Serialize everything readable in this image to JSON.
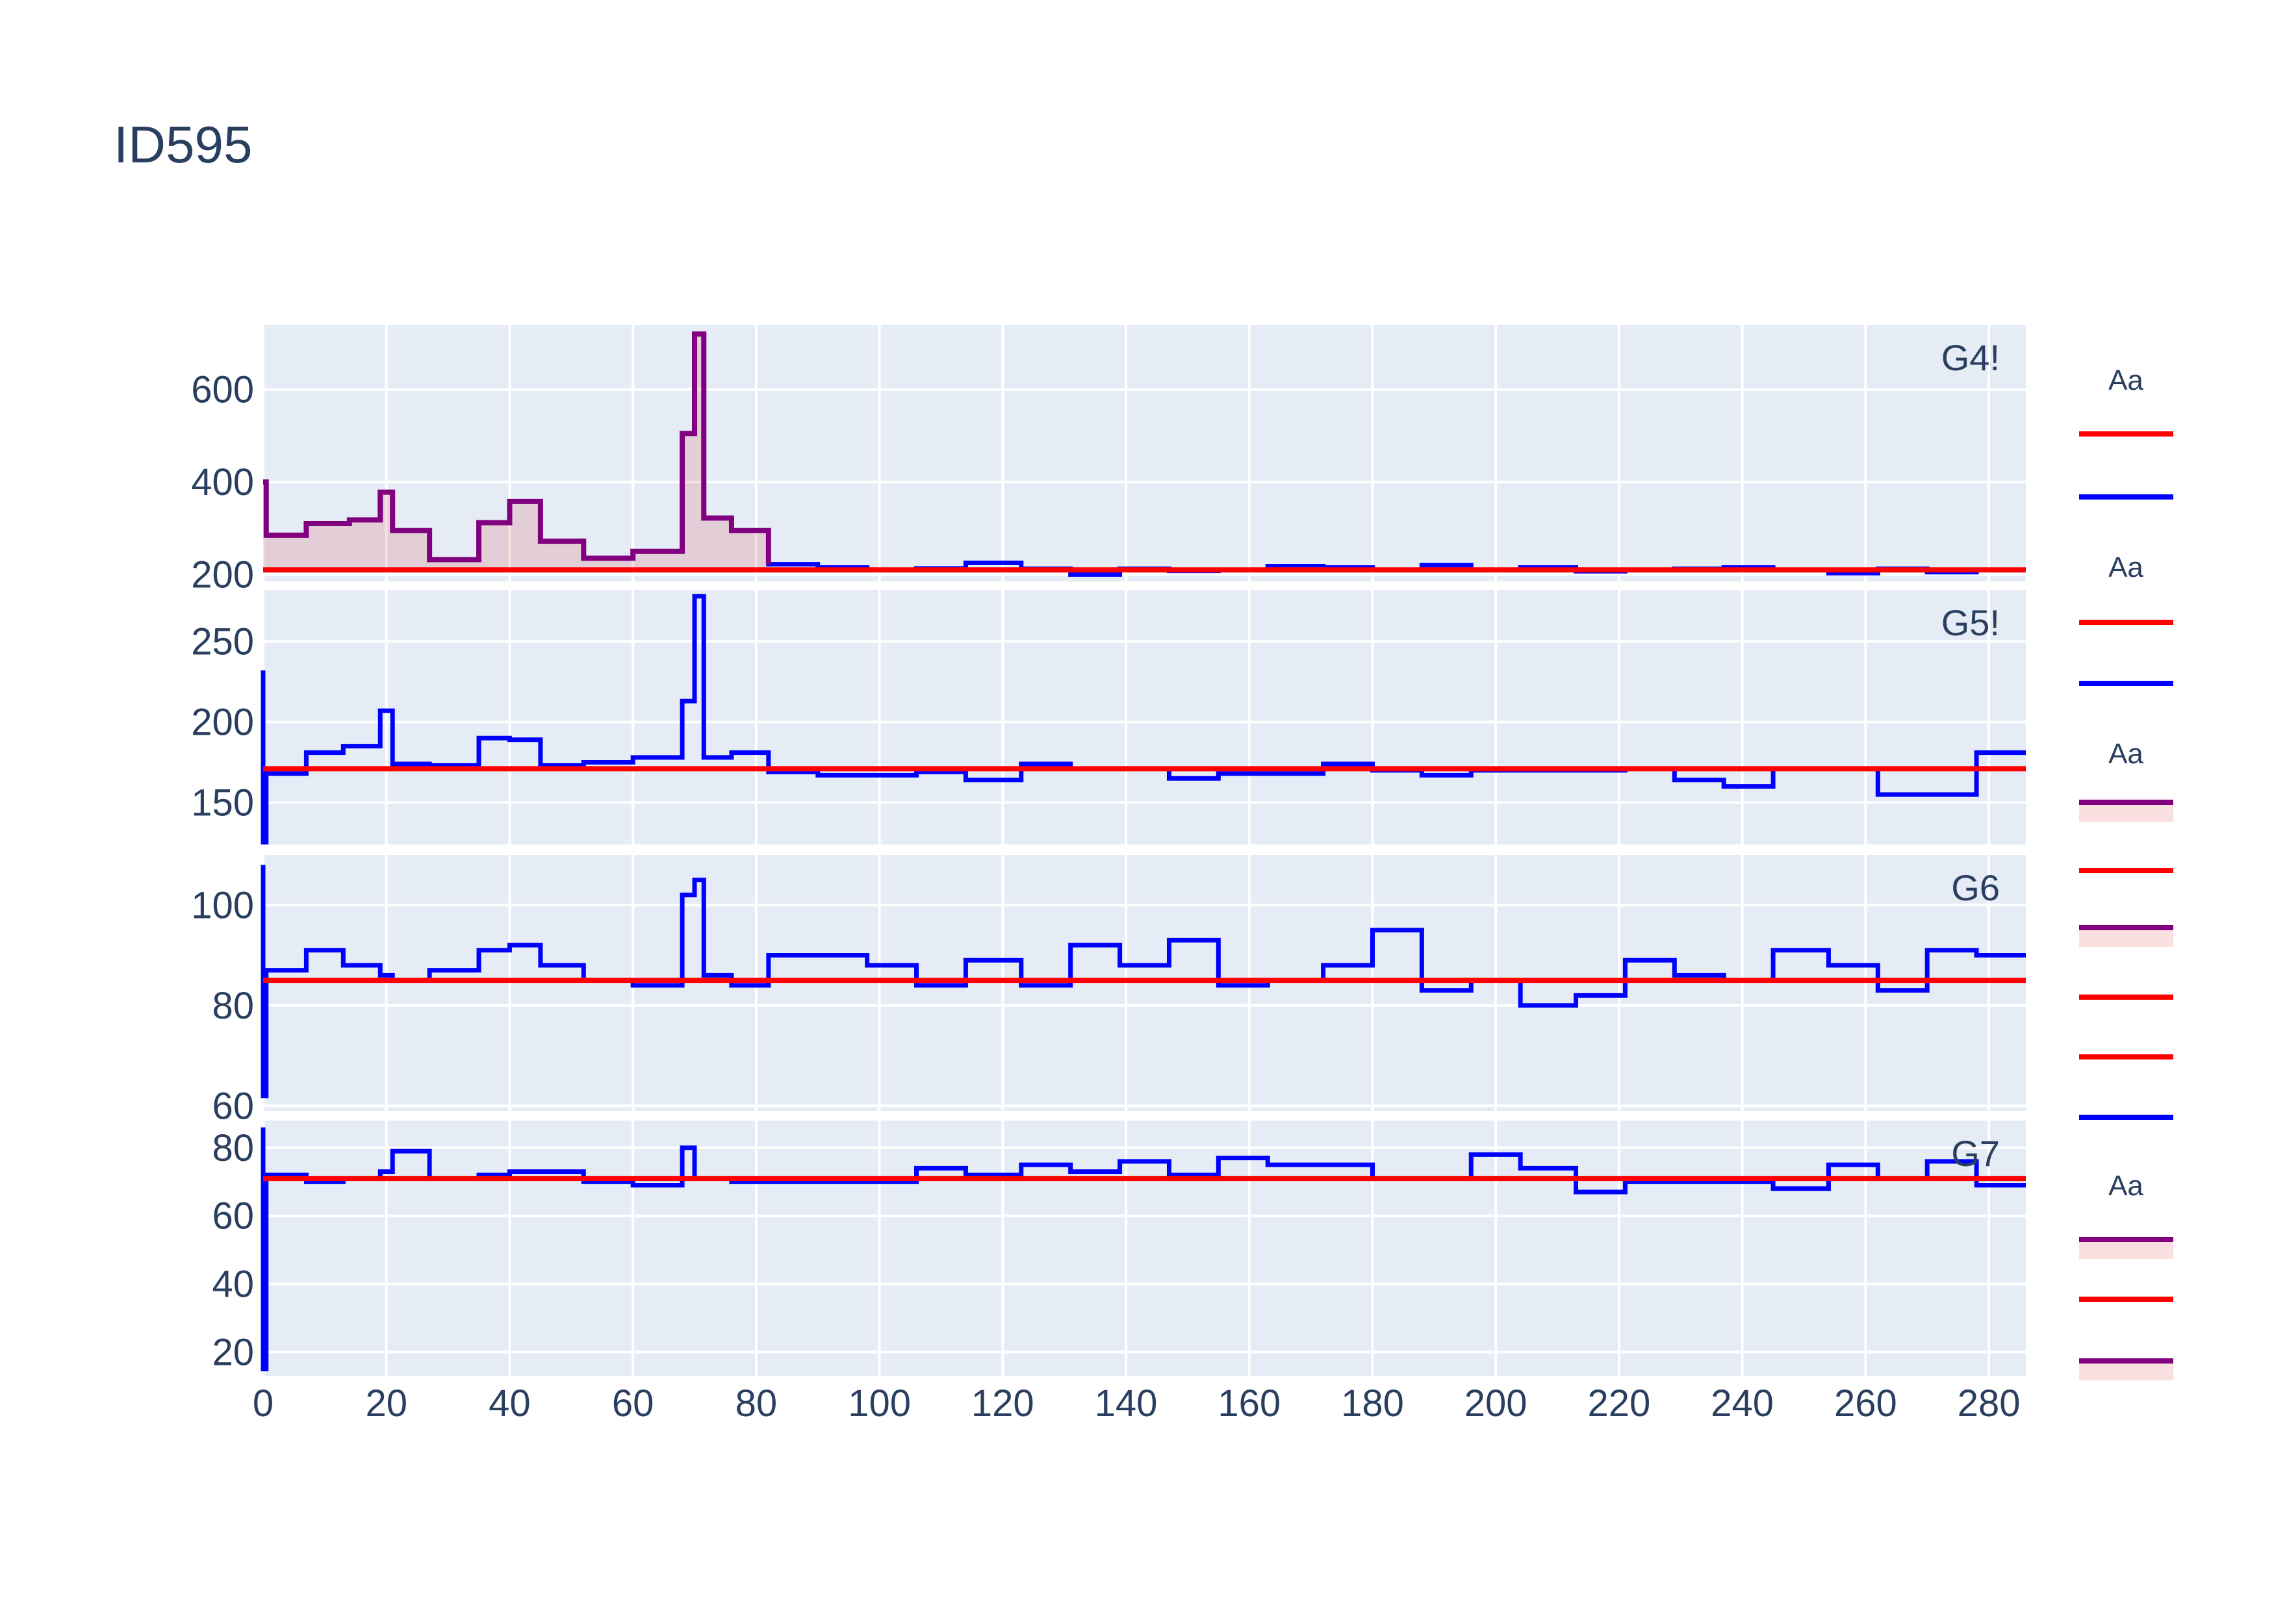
{
  "chart_data": {
    "type": "line",
    "title": "ID595",
    "x_axis": {
      "range": [
        0,
        286
      ],
      "ticks": [
        0,
        20,
        40,
        60,
        80,
        100,
        120,
        140,
        160,
        180,
        200,
        220,
        240,
        260,
        280
      ]
    },
    "grid": true,
    "legend_placement": "right",
    "colors": {
      "series": "#0000ff",
      "threshold": "#ff0000",
      "anomaly": "#800080",
      "fill": "rgba(214,39,40,0.15)",
      "plot_bg": "#e5ecf6",
      "text": "#2a3f5f"
    },
    "panels": [
      {
        "label": "G4!",
        "yrange": [
          185,
          740
        ],
        "yticks": [
          200,
          400,
          600
        ],
        "threshold": 210,
        "series": [
          {
            "x": 0,
            "y": 400
          },
          {
            "x": 0.5,
            "y": 285
          },
          {
            "x": 7,
            "y": 310
          },
          {
            "x": 14,
            "y": 318
          },
          {
            "x": 19,
            "y": 378
          },
          {
            "x": 21,
            "y": 295
          },
          {
            "x": 27,
            "y": 232
          },
          {
            "x": 35,
            "y": 312
          },
          {
            "x": 40,
            "y": 358
          },
          {
            "x": 45,
            "y": 272
          },
          {
            "x": 52,
            "y": 235
          },
          {
            "x": 60,
            "y": 250
          },
          {
            "x": 68,
            "y": 505
          },
          {
            "x": 70,
            "y": 720
          },
          {
            "x": 71.5,
            "y": 322
          },
          {
            "x": 76,
            "y": 295
          },
          {
            "x": 82,
            "y": 222
          },
          {
            "x": 90,
            "y": 215
          },
          {
            "x": 98,
            "y": 210
          },
          {
            "x": 106,
            "y": 213
          },
          {
            "x": 114,
            "y": 225
          },
          {
            "x": 123,
            "y": 212
          },
          {
            "x": 131,
            "y": 200
          },
          {
            "x": 139,
            "y": 212
          },
          {
            "x": 147,
            "y": 208
          },
          {
            "x": 155,
            "y": 210
          },
          {
            "x": 163,
            "y": 218
          },
          {
            "x": 172,
            "y": 215
          },
          {
            "x": 180,
            "y": 210
          },
          {
            "x": 188,
            "y": 220
          },
          {
            "x": 196,
            "y": 210
          },
          {
            "x": 204,
            "y": 215
          },
          {
            "x": 213,
            "y": 207
          },
          {
            "x": 221,
            "y": 210
          },
          {
            "x": 229,
            "y": 212
          },
          {
            "x": 237,
            "y": 215
          },
          {
            "x": 245,
            "y": 210
          },
          {
            "x": 254,
            "y": 203
          },
          {
            "x": 262,
            "y": 212
          },
          {
            "x": 270,
            "y": 205
          },
          {
            "x": 278,
            "y": 210
          },
          {
            "x": 286,
            "y": 210
          }
        ],
        "anomaly_end": 82
      },
      {
        "label": "G5!",
        "yrange": [
          124,
          282
        ],
        "yticks": [
          150,
          200,
          250
        ],
        "threshold": 171,
        "series": [
          {
            "x": 0,
            "y": 232
          },
          {
            "x": 0,
            "y": 125
          },
          {
            "x": 0.5,
            "y": 168
          },
          {
            "x": 7,
            "y": 181
          },
          {
            "x": 13,
            "y": 185
          },
          {
            "x": 19,
            "y": 207
          },
          {
            "x": 21,
            "y": 174
          },
          {
            "x": 27,
            "y": 173
          },
          {
            "x": 35,
            "y": 190
          },
          {
            "x": 40,
            "y": 189
          },
          {
            "x": 45,
            "y": 173
          },
          {
            "x": 52,
            "y": 175
          },
          {
            "x": 60,
            "y": 178
          },
          {
            "x": 68,
            "y": 213
          },
          {
            "x": 70,
            "y": 278
          },
          {
            "x": 71.5,
            "y": 178
          },
          {
            "x": 76,
            "y": 181
          },
          {
            "x": 82,
            "y": 169
          },
          {
            "x": 90,
            "y": 167
          },
          {
            "x": 106,
            "y": 169
          },
          {
            "x": 114,
            "y": 164
          },
          {
            "x": 123,
            "y": 174
          },
          {
            "x": 131,
            "y": 171
          },
          {
            "x": 147,
            "y": 165
          },
          {
            "x": 155,
            "y": 168
          },
          {
            "x": 172,
            "y": 174
          },
          {
            "x": 180,
            "y": 170
          },
          {
            "x": 188,
            "y": 167
          },
          {
            "x": 196,
            "y": 170
          },
          {
            "x": 221,
            "y": 171
          },
          {
            "x": 229,
            "y": 164
          },
          {
            "x": 237,
            "y": 160
          },
          {
            "x": 245,
            "y": 171
          },
          {
            "x": 262,
            "y": 155
          },
          {
            "x": 278,
            "y": 181
          },
          {
            "x": 286,
            "y": 181
          }
        ]
      },
      {
        "label": "G6",
        "yrange": [
          59,
          110
        ],
        "yticks": [
          60,
          80,
          100
        ],
        "threshold": 85,
        "series": [
          {
            "x": 0,
            "y": 108
          },
          {
            "x": 0,
            "y": 62
          },
          {
            "x": 0.5,
            "y": 87
          },
          {
            "x": 7,
            "y": 91
          },
          {
            "x": 13,
            "y": 88
          },
          {
            "x": 19,
            "y": 86
          },
          {
            "x": 21,
            "y": 85
          },
          {
            "x": 27,
            "y": 87
          },
          {
            "x": 35,
            "y": 91
          },
          {
            "x": 40,
            "y": 92
          },
          {
            "x": 45,
            "y": 88
          },
          {
            "x": 52,
            "y": 85
          },
          {
            "x": 60,
            "y": 84
          },
          {
            "x": 68,
            "y": 102
          },
          {
            "x": 70,
            "y": 105
          },
          {
            "x": 71.5,
            "y": 86
          },
          {
            "x": 76,
            "y": 84
          },
          {
            "x": 82,
            "y": 90
          },
          {
            "x": 98,
            "y": 88
          },
          {
            "x": 106,
            "y": 84
          },
          {
            "x": 114,
            "y": 89
          },
          {
            "x": 123,
            "y": 84
          },
          {
            "x": 131,
            "y": 92
          },
          {
            "x": 139,
            "y": 88
          },
          {
            "x": 147,
            "y": 93
          },
          {
            "x": 155,
            "y": 84
          },
          {
            "x": 163,
            "y": 85
          },
          {
            "x": 172,
            "y": 88
          },
          {
            "x": 180,
            "y": 95
          },
          {
            "x": 188,
            "y": 83
          },
          {
            "x": 196,
            "y": 85
          },
          {
            "x": 204,
            "y": 80
          },
          {
            "x": 213,
            "y": 82
          },
          {
            "x": 221,
            "y": 89
          },
          {
            "x": 229,
            "y": 86
          },
          {
            "x": 237,
            "y": 85
          },
          {
            "x": 245,
            "y": 91
          },
          {
            "x": 254,
            "y": 88
          },
          {
            "x": 262,
            "y": 83
          },
          {
            "x": 270,
            "y": 91
          },
          {
            "x": 278,
            "y": 90
          },
          {
            "x": 286,
            "y": 90
          }
        ]
      },
      {
        "label": "G7",
        "yrange": [
          13,
          88
        ],
        "yticks": [
          20,
          40,
          60,
          80
        ],
        "threshold": 71,
        "series": [
          {
            "x": 0,
            "y": 86
          },
          {
            "x": 0,
            "y": 15
          },
          {
            "x": 0.5,
            "y": 72
          },
          {
            "x": 7,
            "y": 70
          },
          {
            "x": 13,
            "y": 71
          },
          {
            "x": 19,
            "y": 73
          },
          {
            "x": 21,
            "y": 79
          },
          {
            "x": 27,
            "y": 71
          },
          {
            "x": 35,
            "y": 72
          },
          {
            "x": 40,
            "y": 73
          },
          {
            "x": 52,
            "y": 70
          },
          {
            "x": 60,
            "y": 69
          },
          {
            "x": 68,
            "y": 80
          },
          {
            "x": 70,
            "y": 71
          },
          {
            "x": 76,
            "y": 70
          },
          {
            "x": 90,
            "y": 70
          },
          {
            "x": 106,
            "y": 74
          },
          {
            "x": 114,
            "y": 72
          },
          {
            "x": 123,
            "y": 75
          },
          {
            "x": 131,
            "y": 73
          },
          {
            "x": 139,
            "y": 76
          },
          {
            "x": 147,
            "y": 72
          },
          {
            "x": 155,
            "y": 77
          },
          {
            "x": 163,
            "y": 75
          },
          {
            "x": 180,
            "y": 71
          },
          {
            "x": 196,
            "y": 78
          },
          {
            "x": 204,
            "y": 74
          },
          {
            "x": 213,
            "y": 67
          },
          {
            "x": 221,
            "y": 70
          },
          {
            "x": 245,
            "y": 68
          },
          {
            "x": 254,
            "y": 75
          },
          {
            "x": 262,
            "y": 71
          },
          {
            "x": 270,
            "y": 76
          },
          {
            "x": 278,
            "y": 69
          },
          {
            "x": 286,
            "y": 69
          }
        ]
      }
    ],
    "legend": {
      "title": "Aa",
      "entries": [
        {
          "group": 1,
          "title": "Aa",
          "kind": "line",
          "color": "#ff0000"
        },
        {
          "group": 1,
          "kind": "line",
          "color": "#0000ff"
        },
        {
          "group": 2,
          "title": "Aa",
          "kind": "line",
          "color": "#ff0000"
        },
        {
          "group": 2,
          "kind": "line",
          "color": "#0000ff"
        },
        {
          "group": 3,
          "title": "Aa",
          "kind": "fill",
          "color": "#800080"
        },
        {
          "group": 3,
          "kind": "line",
          "color": "#ff0000"
        },
        {
          "group": 3,
          "kind": "fill",
          "color": "#800080"
        },
        {
          "group": 3,
          "kind": "line",
          "color": "#ff0000"
        },
        {
          "group": 3,
          "kind": "line",
          "color": "#ff0000"
        },
        {
          "group": 3,
          "kind": "line",
          "color": "#0000ff"
        },
        {
          "group": 4,
          "title": "Aa",
          "kind": "fill",
          "color": "#800080"
        },
        {
          "group": 4,
          "kind": "line",
          "color": "#ff0000"
        },
        {
          "group": 4,
          "kind": "fill",
          "color": "#800080"
        }
      ]
    }
  }
}
